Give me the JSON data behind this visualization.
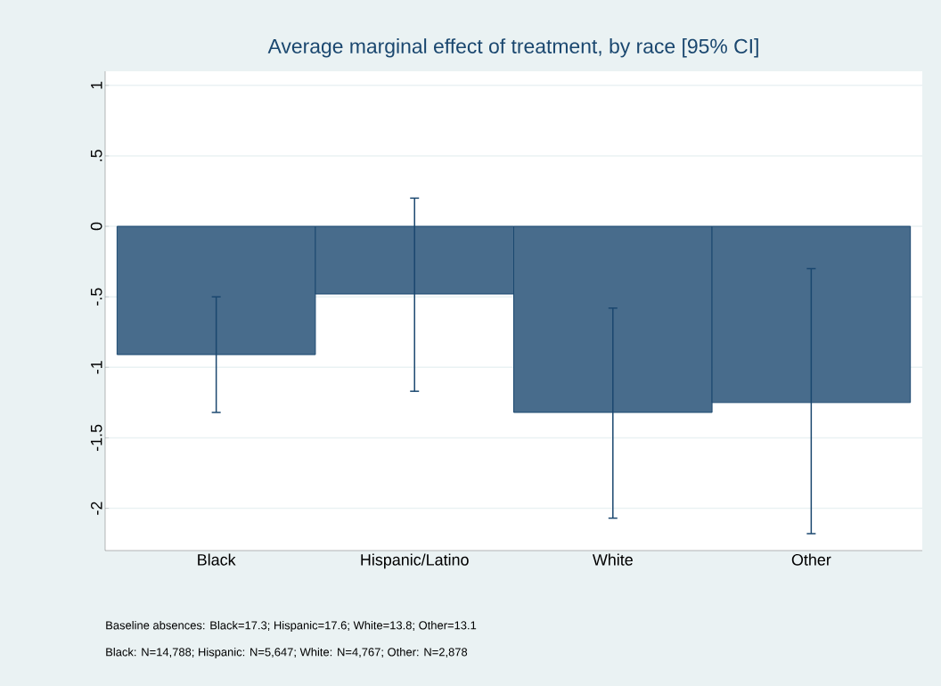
{
  "chart_data": {
    "type": "bar",
    "title": "Average marginal effect of treatment, by race [95% CI]",
    "categories": [
      "Black",
      "Hispanic/Latino",
      "White",
      "Other"
    ],
    "values": [
      -0.91,
      -0.48,
      -1.32,
      -1.25
    ],
    "errors": [
      [
        -1.32,
        -0.5
      ],
      [
        -1.17,
        0.2
      ],
      [
        -2.07,
        -0.58
      ],
      [
        -2.18,
        -0.3
      ]
    ],
    "color": "#486c8c",
    "ylim": [
      -2.3,
      1.1
    ],
    "yticks": [
      1,
      {
        "value": 0.5,
        "label": ".5"
      },
      0,
      {
        "value": -0.5,
        "label": "-.5"
      },
      -1,
      -1.5,
      -2
    ],
    "grid": "y",
    "annotations": [
      "Baseline absences: Black=17.3; Hispanic=17.6; White=13.8; Other=13.1",
      "Black: N=14,788; Hispanic: N=5,647; White: N=4,767; Other: N=2,878"
    ]
  }
}
